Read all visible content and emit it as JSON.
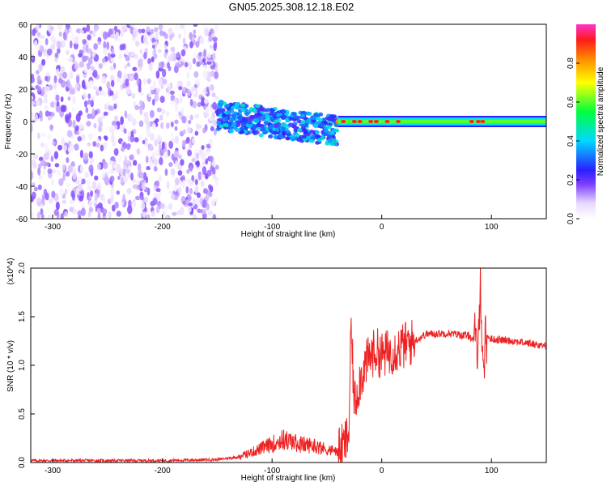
{
  "title": "GN05.2025.308.12.18.E02",
  "chart_data": [
    {
      "type": "heatmap",
      "name": "spectrogram",
      "xlabel": "Height of straight line (km)",
      "ylabel": "Frequency (Hz)",
      "xlim": [
        -320,
        150
      ],
      "ylim": [
        -60,
        60
      ],
      "xticks": [
        -300,
        -200,
        -100,
        0,
        100
      ],
      "yticks": [
        -60,
        -40,
        -20,
        0,
        20,
        40,
        60
      ],
      "colorbar": {
        "label": "Normalized spectral amplitude",
        "range": [
          0.0,
          1.0
        ],
        "ticks": [
          0.0,
          0.2,
          0.4,
          0.6,
          0.8
        ]
      },
      "description_regions": [
        {
          "x_from": -320,
          "x_to": -150,
          "freq_range": [
            -60,
            60
          ],
          "amplitude_range": [
            0.02,
            0.18
          ]
        },
        {
          "x_from": -150,
          "x_to": -40,
          "freq_center": 0,
          "freq_width": 15,
          "amplitude_range": [
            0.2,
            0.45
          ]
        },
        {
          "x_from": -40,
          "x_to": 150,
          "freq_center": 0,
          "freq_width": 4,
          "amplitude_range": [
            0.55,
            1.0
          ]
        }
      ]
    },
    {
      "type": "line",
      "name": "snr",
      "xlabel": "Height of straight line (km)",
      "ylabel": "SNR (10 * v/v)",
      "y_multiplier": "(x10^4)",
      "xlim": [
        -320,
        150
      ],
      "ylim": [
        0,
        2.0
      ],
      "xticks": [
        -300,
        -200,
        -100,
        0,
        100
      ],
      "yticks": [
        0.0,
        0.5,
        1.0,
        1.5,
        2.0
      ],
      "color": "#ee2222",
      "series": [
        {
          "name": "SNR",
          "x": [
            -320,
            -250,
            -200,
            -150,
            -130,
            -110,
            -90,
            -75,
            -60,
            -50,
            -40,
            -35,
            -30,
            -28,
            -25,
            -20,
            -15,
            -10,
            -5,
            0,
            10,
            20,
            30,
            40,
            60,
            80,
            85,
            88,
            90,
            92,
            95,
            100,
            120,
            150
          ],
          "y": [
            0.02,
            0.02,
            0.02,
            0.03,
            0.06,
            0.15,
            0.25,
            0.2,
            0.18,
            0.14,
            0.12,
            0.16,
            0.3,
            1.4,
            0.6,
            0.85,
            1.0,
            1.1,
            1.15,
            1.1,
            1.15,
            1.2,
            1.25,
            1.32,
            1.33,
            1.3,
            1.25,
            1.1,
            2.0,
            0.95,
            1.3,
            1.27,
            1.25,
            1.2
          ]
        }
      ]
    }
  ]
}
